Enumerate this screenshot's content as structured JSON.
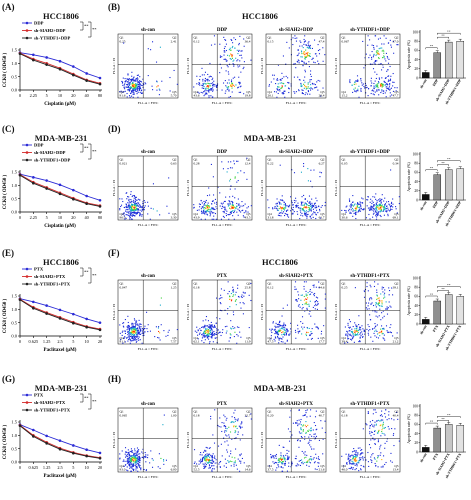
{
  "figure": {
    "panel_labels": {
      "A": "(A)",
      "B": "(B)",
      "C": "(C)",
      "D": "(D)",
      "E": "(E)",
      "F": "(F)",
      "G": "(G)",
      "H": "(H)"
    },
    "rows": [
      {
        "id": "r1",
        "left_title": "HCC1806",
        "right_title": "HCC1806"
      },
      {
        "id": "r2",
        "left_title": "MDA-MB-231",
        "right_title": "MDA-MB-231"
      },
      {
        "id": "r3",
        "left_title": "HCC1806",
        "right_title": "HCC1806"
      },
      {
        "id": "r4",
        "left_title": "MDA-MB-231",
        "right_title": "MDA-MB-231"
      }
    ]
  },
  "chart_data": [
    {
      "panel": "A",
      "type": "line",
      "title": "HCC1806",
      "xlabel": "Cisplatin (μM)",
      "ylabel": "CCK8 ( OD450 )",
      "categories": [
        "0",
        "2.25",
        "5",
        "10",
        "20",
        "40",
        "80"
      ],
      "ylim": [
        0,
        1.5
      ],
      "yticks": [
        "0.0",
        "0.5",
        "1.0",
        "1.5"
      ],
      "series": [
        {
          "name": "DDP",
          "color": "#2b2bd6",
          "values": [
            1.4,
            1.32,
            1.22,
            1.08,
            0.88,
            0.62,
            0.45
          ]
        },
        {
          "name": "sh-SIAH2+DDP",
          "color": "#d42a2a",
          "values": [
            1.38,
            1.16,
            1.0,
            0.82,
            0.6,
            0.38,
            0.25
          ]
        },
        {
          "name": "sh-YTHDF1+DDP",
          "color": "#222222",
          "values": [
            1.36,
            1.12,
            0.95,
            0.78,
            0.56,
            0.35,
            0.22
          ]
        }
      ],
      "significance": [
        "**",
        "**"
      ]
    },
    {
      "panel": "C",
      "type": "line",
      "title": "MDA-MB-231",
      "xlabel": "Cisplatin (μM)",
      "ylabel": "CCK8 ( OD450 )",
      "categories": [
        "0",
        "2.25",
        "5",
        "10",
        "20",
        "40",
        "80"
      ],
      "ylim": [
        0,
        1.5
      ],
      "yticks": [
        "0.0",
        "0.5",
        "1.0",
        "1.5"
      ],
      "series": [
        {
          "name": "DDP",
          "color": "#2b2bd6",
          "values": [
            1.42,
            1.3,
            1.18,
            1.02,
            0.82,
            0.6,
            0.44
          ]
        },
        {
          "name": "sh-SIAH2+DDP",
          "color": "#d42a2a",
          "values": [
            1.4,
            1.12,
            0.92,
            0.72,
            0.52,
            0.34,
            0.24
          ]
        },
        {
          "name": "sh-YTHDF1+DDP",
          "color": "#222222",
          "values": [
            1.38,
            1.08,
            0.88,
            0.68,
            0.48,
            0.31,
            0.21
          ]
        }
      ],
      "significance": [
        "**",
        "**"
      ]
    },
    {
      "panel": "E",
      "type": "line",
      "title": "HCC1806",
      "xlabel": "Paclitaxel (μM)",
      "ylabel": "CCK8 ( OD450 )",
      "categories": [
        "0",
        "0.625",
        "1.25",
        "2.5",
        "5",
        "10",
        "20"
      ],
      "ylim": [
        0,
        1.5
      ],
      "yticks": [
        "0.0",
        "0.5",
        "1.0",
        "1.5"
      ],
      "series": [
        {
          "name": "PTX",
          "color": "#2b2bd6",
          "values": [
            1.4,
            1.28,
            1.14,
            0.98,
            0.82,
            0.64,
            0.5
          ]
        },
        {
          "name": "sh-SIAH2+PTX",
          "color": "#d42a2a",
          "values": [
            1.38,
            1.08,
            0.88,
            0.7,
            0.52,
            0.36,
            0.26
          ]
        },
        {
          "name": "sh-YTHDF1+PTX",
          "color": "#222222",
          "values": [
            1.36,
            1.04,
            0.84,
            0.66,
            0.48,
            0.33,
            0.23
          ]
        }
      ],
      "significance": [
        "**",
        "**"
      ]
    },
    {
      "panel": "G",
      "type": "line",
      "title": "MDA-MB-231",
      "xlabel": "Paclitaxel (μM)",
      "ylabel": "CCK8 ( OD450 )",
      "categories": [
        "0",
        "0.625",
        "1.25",
        "2.5",
        "5",
        "10",
        "20"
      ],
      "ylim": [
        0,
        1.5
      ],
      "yticks": [
        "0.0",
        "0.5",
        "1.0",
        "1.5"
      ],
      "series": [
        {
          "name": "PTX",
          "color": "#2b2bd6",
          "values": [
            1.4,
            1.2,
            0.98,
            0.8,
            0.62,
            0.46,
            0.34
          ]
        },
        {
          "name": "sh-SIAH2+PTX",
          "color": "#d42a2a",
          "values": [
            1.38,
            1.0,
            0.74,
            0.52,
            0.36,
            0.24,
            0.16
          ]
        },
        {
          "name": "sh-YTHDF1+PTX",
          "color": "#222222",
          "values": [
            1.36,
            0.96,
            0.7,
            0.48,
            0.33,
            0.22,
            0.14
          ]
        }
      ],
      "significance": [
        "**",
        "**"
      ]
    },
    {
      "panel": "B",
      "type": "bar",
      "ylabel": "Apoptosis rate (%)",
      "categories": [
        "sh-con",
        "DDP",
        "sh-SIAH2+DDP",
        "sh-YTHDF1+DDP"
      ],
      "values": [
        12,
        55,
        78,
        80
      ],
      "ylim": [
        0,
        100
      ],
      "yticks": [
        "0",
        "20",
        "40",
        "60",
        "80",
        "100"
      ],
      "significance": [
        "**",
        "**",
        "**"
      ]
    },
    {
      "panel": "D",
      "type": "bar",
      "ylabel": "Apoptosis rate (%)",
      "categories": [
        "sh-con",
        "DDP",
        "sh-SIAH2+DDP",
        "sh-YTHDF1+DDP"
      ],
      "values": [
        12,
        55,
        66,
        68
      ],
      "ylim": [
        0,
        100
      ],
      "yticks": [
        "0",
        "20",
        "40",
        "60",
        "80",
        "100"
      ],
      "significance": [
        "**",
        "**",
        "**"
      ]
    },
    {
      "panel": "F",
      "type": "bar",
      "ylabel": "Apoptosis rate (%)",
      "categories": [
        "sh-con",
        "PTX",
        "sh-SIAH2+PTX",
        "sh-YTHDF1+PTX"
      ],
      "values": [
        10,
        50,
        64,
        60
      ],
      "ylim": [
        0,
        100
      ],
      "yticks": [
        "0",
        "20",
        "40",
        "60",
        "80",
        "100"
      ],
      "significance": [
        "**",
        "**",
        "**"
      ]
    },
    {
      "panel": "H",
      "type": "bar",
      "ylabel": "Apoptosis rate (%)",
      "categories": [
        "sh-con",
        "PTX",
        "sh-SIAH2+PTX",
        "sh-YTHDF1+PTX"
      ],
      "values": [
        10,
        52,
        60,
        58
      ],
      "ylim": [
        0,
        100
      ],
      "yticks": [
        "0",
        "20",
        "40",
        "60",
        "80",
        "100"
      ],
      "significance": [
        "**",
        "**",
        "**"
      ]
    }
  ],
  "flow_panels": [
    {
      "panel": "B",
      "xlabel": "FL1-A :: FITC",
      "ylabel": "FL3-A :: PI",
      "quadrants": [
        "Q1",
        "Q2",
        "Q3",
        "Q4"
      ],
      "plots": [
        {
          "title": "sh-con",
          "q1": "0.25",
          "q2": "2.41",
          "q3": "5.70",
          "q4": "91.6"
        },
        {
          "title": "DDP",
          "q1": "0.12",
          "q2": "36.4",
          "q3": "19.8",
          "q4": "43.6"
        },
        {
          "title": "sh-SIAH2+DDP",
          "q1": "0.15",
          "q2": "47.4",
          "q3": "26.4",
          "q4": "26.1"
        },
        {
          "title": "sh-YTHDF1+DDP",
          "q1": "0.067",
          "q2": "37.0",
          "q3": "47.7",
          "q4": "15.2"
        }
      ]
    },
    {
      "panel": "D",
      "xlabel": "FL1-A :: FITC",
      "ylabel": "FL3-A :: PI",
      "quadrants": [
        "Q1",
        "Q2",
        "Q3",
        "Q4"
      ],
      "plots": [
        {
          "title": "sh-con",
          "q1": "0.021",
          "q2": "0.63",
          "q3": "3.30",
          "q4": "96.0"
        },
        {
          "title": "DDP",
          "q1": "0.28",
          "q2": "12.4",
          "q3": "43.5",
          "q4": "43.9"
        },
        {
          "title": "sh-SIAH2+DDP",
          "q1": "0.22",
          "q2": "6.27",
          "q3": "61.7",
          "q4": "31.8"
        },
        {
          "title": "sh-YTHDF1+DDP",
          "q1": "0.05",
          "q2": "0.34",
          "q3": "69.1",
          "q4": "30.6"
        }
      ]
    },
    {
      "panel": "F",
      "xlabel": "FL1-A :: FITC",
      "ylabel": "FL3-A :: PI",
      "quadrants": [
        "Q1",
        "Q2",
        "Q3",
        "Q4"
      ],
      "plots": [
        {
          "title": "sh-con",
          "q1": "0.047",
          "q2": "1.25",
          "q3": "7.57",
          "q4": "91.1"
        },
        {
          "title": "PTX",
          "q1": "0.18",
          "q2": "25.8",
          "q3": "11.9",
          "q4": "62.1"
        },
        {
          "title": "sh-SIAH2+PTX",
          "q1": "0.12",
          "q2": "34.6",
          "q3": "17.7",
          "q4": "47.5"
        },
        {
          "title": "sh-YTHDF1+PTX",
          "q1": "0.25",
          "q2": "39.1",
          "q3": "21.2",
          "q4": "39.4"
        }
      ]
    },
    {
      "panel": "H",
      "xlabel": "FL1-A :: FITC",
      "ylabel": "FL3-A :: PI",
      "quadrants": [
        "Q1",
        "Q2",
        "Q3",
        "Q4"
      ],
      "plots": [
        {
          "title": "sh-con",
          "q1": "0.065",
          "q2": "1.00",
          "q3": "6.00",
          "q4": "93.0"
        },
        {
          "title": "PTX",
          "q1": "0.18",
          "q2": "32.7",
          "q3": "14.6",
          "q4": "52.5"
        },
        {
          "title": "sh-SIAH2+PTX",
          "q1": "0.20",
          "q2": "40.7",
          "q3": "21.6",
          "q4": "37.5"
        },
        {
          "title": "sh-YTHDF1+PTX",
          "q1": "0.18",
          "q2": "40.4",
          "q3": "13.4",
          "q4": "46.0"
        }
      ]
    }
  ]
}
